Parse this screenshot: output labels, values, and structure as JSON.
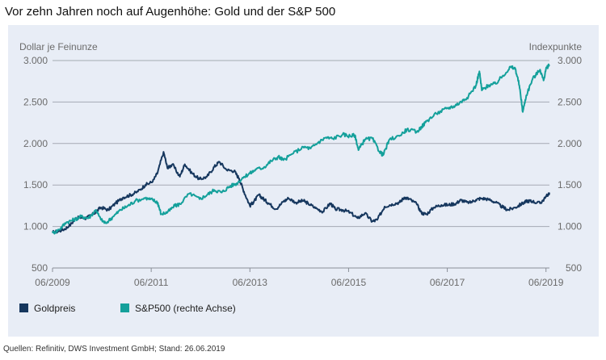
{
  "page_title": "Vor zehn Jahren noch auf Augenhöhe: Gold und der S&P 500",
  "source_note": "Quellen: Refinitiv, DWS Investment GmbH; Stand: 26.06.2019",
  "colors": {
    "gold": "#16375e",
    "sp500": "#14a09b",
    "panel_bg": "#e8edf6",
    "grid": "#a5aab3"
  },
  "chart_data": {
    "type": "line",
    "ylabel_left": "Dollar je Feinunze",
    "ylabel_right": "Indexpunkte",
    "ylim_left": [
      500,
      3000
    ],
    "ylim_right": [
      500,
      3000
    ],
    "yticks": [
      {
        "value": 3000,
        "label": "3.000"
      },
      {
        "value": 2500,
        "label": "2.500"
      },
      {
        "value": 2000,
        "label": "2.000"
      },
      {
        "value": 1500,
        "label": "1.500"
      },
      {
        "value": 1000,
        "label": "1.000"
      },
      {
        "value": 500,
        "label": "500"
      }
    ],
    "xlim": [
      2009.42,
      2019.49
    ],
    "xticks": [
      {
        "value": 2009.42,
        "label": "06/2009"
      },
      {
        "value": 2011.42,
        "label": "06/2011"
      },
      {
        "value": 2013.42,
        "label": "06/2013"
      },
      {
        "value": 2015.42,
        "label": "06/2015"
      },
      {
        "value": 2017.42,
        "label": "06/2017"
      },
      {
        "value": 2019.42,
        "label": "06/2019"
      }
    ],
    "grid": true,
    "legend_position": "bottom-left",
    "series": [
      {
        "name": "Goldpreis",
        "axis": "left",
        "points": [
          [
            2009.42,
            930
          ],
          [
            2009.6,
            950
          ],
          [
            2009.75,
            1000
          ],
          [
            2009.9,
            1100
          ],
          [
            2010.0,
            1110
          ],
          [
            2010.1,
            1100
          ],
          [
            2010.25,
            1150
          ],
          [
            2010.4,
            1230
          ],
          [
            2010.55,
            1200
          ],
          [
            2010.7,
            1280
          ],
          [
            2010.85,
            1350
          ],
          [
            2011.0,
            1380
          ],
          [
            2011.15,
            1420
          ],
          [
            2011.3,
            1500
          ],
          [
            2011.45,
            1540
          ],
          [
            2011.55,
            1650
          ],
          [
            2011.67,
            1900
          ],
          [
            2011.75,
            1700
          ],
          [
            2011.85,
            1750
          ],
          [
            2012.0,
            1600
          ],
          [
            2012.1,
            1750
          ],
          [
            2012.25,
            1640
          ],
          [
            2012.4,
            1570
          ],
          [
            2012.55,
            1600
          ],
          [
            2012.7,
            1720
          ],
          [
            2012.8,
            1780
          ],
          [
            2012.95,
            1680
          ],
          [
            2013.1,
            1670
          ],
          [
            2013.2,
            1580
          ],
          [
            2013.3,
            1420
          ],
          [
            2013.42,
            1250
          ],
          [
            2013.5,
            1300
          ],
          [
            2013.6,
            1380
          ],
          [
            2013.7,
            1330
          ],
          [
            2013.8,
            1280
          ],
          [
            2013.95,
            1210
          ],
          [
            2014.1,
            1300
          ],
          [
            2014.2,
            1340
          ],
          [
            2014.35,
            1290
          ],
          [
            2014.5,
            1310
          ],
          [
            2014.6,
            1280
          ],
          [
            2014.75,
            1220
          ],
          [
            2014.9,
            1180
          ],
          [
            2015.05,
            1280
          ],
          [
            2015.15,
            1210
          ],
          [
            2015.3,
            1200
          ],
          [
            2015.45,
            1170
          ],
          [
            2015.6,
            1100
          ],
          [
            2015.75,
            1160
          ],
          [
            2015.9,
            1060
          ],
          [
            2016.0,
            1080
          ],
          [
            2016.15,
            1240
          ],
          [
            2016.3,
            1270
          ],
          [
            2016.45,
            1290
          ],
          [
            2016.55,
            1350
          ],
          [
            2016.65,
            1330
          ],
          [
            2016.8,
            1270
          ],
          [
            2016.9,
            1160
          ],
          [
            2017.0,
            1150
          ],
          [
            2017.15,
            1230
          ],
          [
            2017.3,
            1260
          ],
          [
            2017.45,
            1260
          ],
          [
            2017.6,
            1280
          ],
          [
            2017.7,
            1320
          ],
          [
            2017.85,
            1280
          ],
          [
            2018.0,
            1320
          ],
          [
            2018.1,
            1340
          ],
          [
            2018.25,
            1330
          ],
          [
            2018.4,
            1290
          ],
          [
            2018.55,
            1230
          ],
          [
            2018.65,
            1200
          ],
          [
            2018.8,
            1230
          ],
          [
            2018.95,
            1280
          ],
          [
            2019.05,
            1310
          ],
          [
            2019.15,
            1300
          ],
          [
            2019.3,
            1280
          ],
          [
            2019.4,
            1340
          ],
          [
            2019.49,
            1410
          ]
        ]
      },
      {
        "name": "S&P500 (rechte Achse)",
        "axis": "right",
        "points": [
          [
            2009.42,
            920
          ],
          [
            2009.55,
            960
          ],
          [
            2009.7,
            1050
          ],
          [
            2009.85,
            1080
          ],
          [
            2010.0,
            1120
          ],
          [
            2010.15,
            1100
          ],
          [
            2010.3,
            1200
          ],
          [
            2010.4,
            1080
          ],
          [
            2010.5,
            1040
          ],
          [
            2010.65,
            1120
          ],
          [
            2010.8,
            1200
          ],
          [
            2010.95,
            1250
          ],
          [
            2011.1,
            1310
          ],
          [
            2011.3,
            1340
          ],
          [
            2011.45,
            1320
          ],
          [
            2011.55,
            1290
          ],
          [
            2011.62,
            1150
          ],
          [
            2011.75,
            1170
          ],
          [
            2011.9,
            1250
          ],
          [
            2012.0,
            1270
          ],
          [
            2012.2,
            1400
          ],
          [
            2012.4,
            1330
          ],
          [
            2012.55,
            1380
          ],
          [
            2012.7,
            1440
          ],
          [
            2012.85,
            1410
          ],
          [
            2013.0,
            1480
          ],
          [
            2013.15,
            1520
          ],
          [
            2013.3,
            1600
          ],
          [
            2013.42,
            1640
          ],
          [
            2013.55,
            1690
          ],
          [
            2013.7,
            1710
          ],
          [
            2013.85,
            1790
          ],
          [
            2014.0,
            1840
          ],
          [
            2014.1,
            1800
          ],
          [
            2014.3,
            1880
          ],
          [
            2014.5,
            1960
          ],
          [
            2014.65,
            1940
          ],
          [
            2014.8,
            2010
          ],
          [
            2014.95,
            2070
          ],
          [
            2015.1,
            2060
          ],
          [
            2015.3,
            2110
          ],
          [
            2015.45,
            2090
          ],
          [
            2015.55,
            2100
          ],
          [
            2015.62,
            1920
          ],
          [
            2015.75,
            2050
          ],
          [
            2015.9,
            2060
          ],
          [
            2016.05,
            1900
          ],
          [
            2016.12,
            1860
          ],
          [
            2016.25,
            2050
          ],
          [
            2016.45,
            2090
          ],
          [
            2016.6,
            2170
          ],
          [
            2016.8,
            2140
          ],
          [
            2016.9,
            2200
          ],
          [
            2017.0,
            2270
          ],
          [
            2017.2,
            2360
          ],
          [
            2017.4,
            2420
          ],
          [
            2017.55,
            2450
          ],
          [
            2017.7,
            2500
          ],
          [
            2017.85,
            2570
          ],
          [
            2018.0,
            2700
          ],
          [
            2018.07,
            2870
          ],
          [
            2018.12,
            2640
          ],
          [
            2018.25,
            2700
          ],
          [
            2018.4,
            2720
          ],
          [
            2018.55,
            2820
          ],
          [
            2018.7,
            2920
          ],
          [
            2018.8,
            2900
          ],
          [
            2018.88,
            2700
          ],
          [
            2018.95,
            2380
          ],
          [
            2019.02,
            2580
          ],
          [
            2019.15,
            2780
          ],
          [
            2019.3,
            2890
          ],
          [
            2019.37,
            2760
          ],
          [
            2019.43,
            2910
          ],
          [
            2019.49,
            2950
          ]
        ]
      }
    ]
  }
}
